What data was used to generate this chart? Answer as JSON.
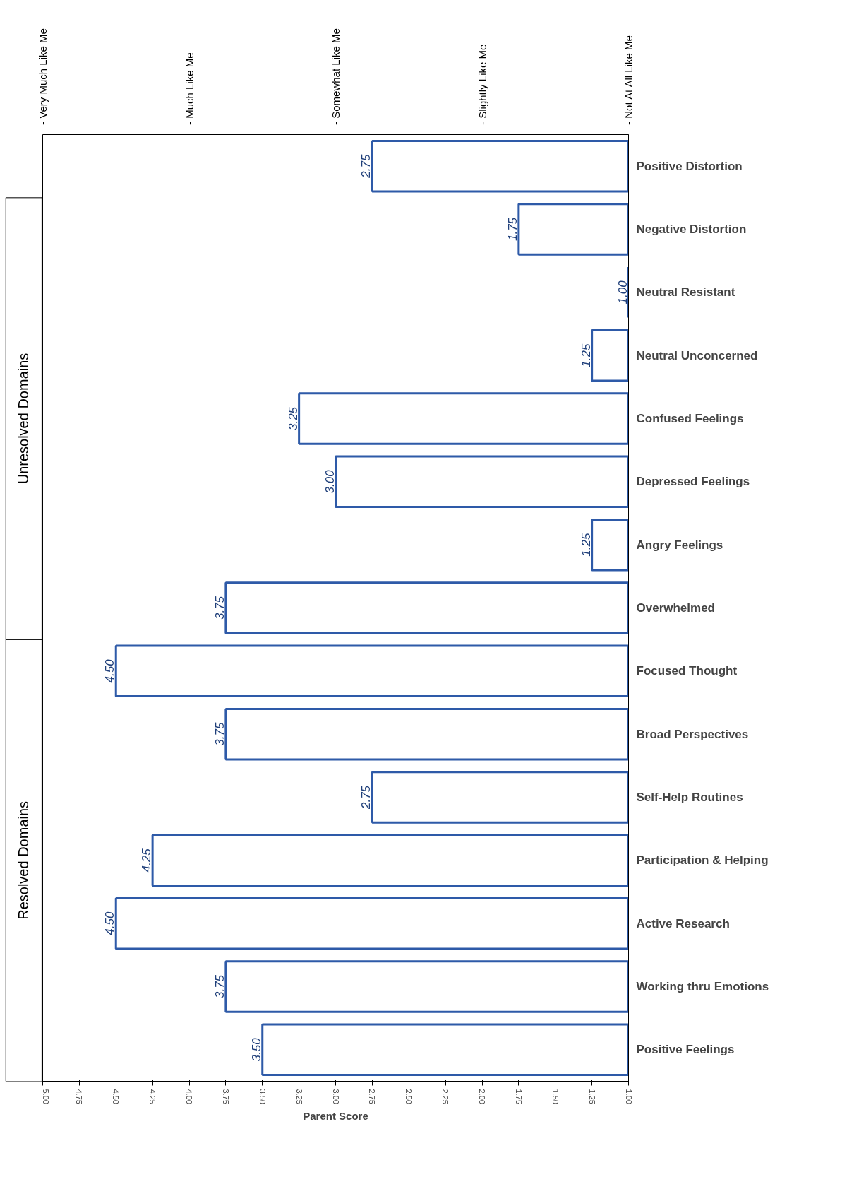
{
  "chart_data": {
    "type": "bar",
    "orientation": "horizontal",
    "categories": [
      "Positive Distortion",
      "Negative Distortion",
      "Neutral Resistant",
      "Neutral Unconcerned",
      "Confused Feelings",
      "Depressed Feelings",
      "Angry Feelings",
      "Overwhelmed",
      "Focused Thought",
      "Broad Perspectives",
      "Self-Help Routines",
      "Participation & Helping",
      "Active Research",
      "Working thru Emotions",
      "Positive Feelings"
    ],
    "values": [
      2.75,
      1.75,
      1.0,
      1.25,
      3.25,
      3.0,
      1.25,
      3.75,
      4.5,
      3.75,
      2.75,
      4.25,
      4.5,
      3.75,
      3.5
    ],
    "value_labels": [
      "2.75",
      "1.75",
      "1.00",
      "1.25",
      "3.25",
      "3.00",
      "1.25",
      "3.75",
      "4.50",
      "3.75",
      "2.75",
      "4.25",
      "4.50",
      "3.75",
      "3.50"
    ],
    "color": "#2e5aa8",
    "xlim": [
      5,
      1
    ],
    "xticks": [
      {
        "value": 5,
        "label": "5.00"
      },
      {
        "value": 4.75,
        "label": "4.75"
      },
      {
        "value": 4.5,
        "label": "4.50"
      },
      {
        "value": 4.25,
        "label": "4.25"
      },
      {
        "value": 4,
        "label": "4.00"
      },
      {
        "value": 3.75,
        "label": "3.75"
      },
      {
        "value": 3.5,
        "label": "3.50"
      },
      {
        "value": 3.25,
        "label": "3.25"
      },
      {
        "value": 3,
        "label": "3.00"
      },
      {
        "value": 2.75,
        "label": "2.75"
      },
      {
        "value": 2.5,
        "label": "2.50"
      },
      {
        "value": 2.25,
        "label": "2.25"
      },
      {
        "value": 2,
        "label": "2.00"
      },
      {
        "value": 1.75,
        "label": "1.75"
      },
      {
        "value": 1.5,
        "label": "1.50"
      },
      {
        "value": 1.25,
        "label": "1.25"
      },
      {
        "value": 1,
        "label": "1.00"
      }
    ],
    "xlabel": "Parent Score",
    "annotations": [
      "- Very Much Like Me",
      "- Much Like Me",
      "- Somewhat Like Me",
      "- Slightly Like Me",
      "- Not At All Like Me",
      "Unresolved Domains",
      "Resolved Domains"
    ],
    "grid": false
  }
}
